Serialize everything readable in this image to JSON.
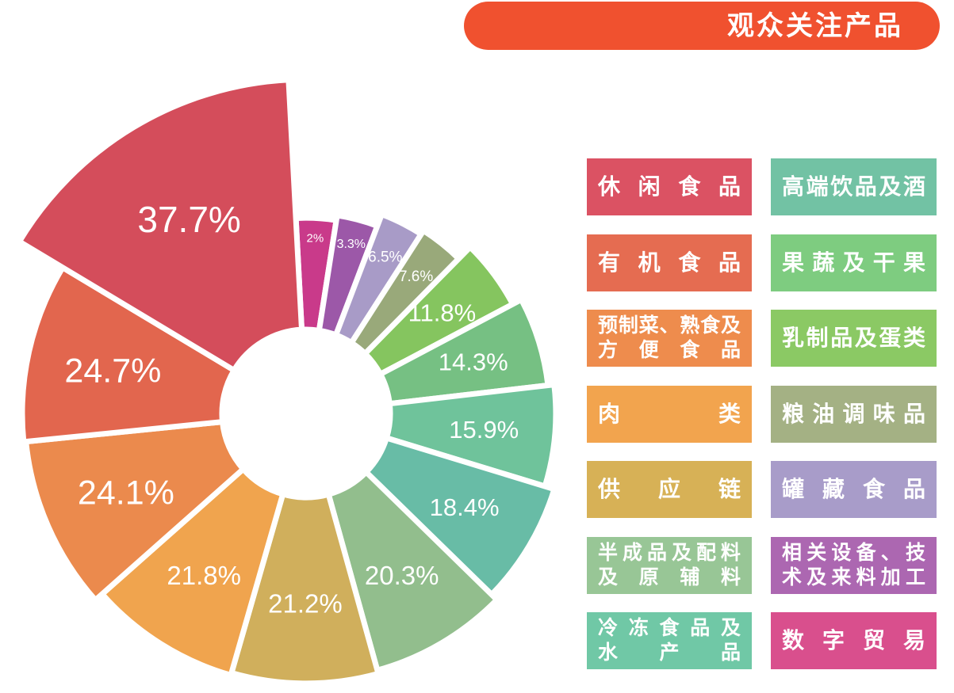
{
  "banner": {
    "title": "观众关注产品",
    "bg_color": "#F0512F",
    "text_color": "#FFFFFF"
  },
  "chart_data": {
    "type": "pie",
    "variant": "nightingale_rose",
    "title": "观众关注产品",
    "unit": "%",
    "order": "clockwise_from_top_ascending_value",
    "value_labels": "inside",
    "legend_position": "right",
    "slices": [
      {
        "label": "数字贸易",
        "value": 2,
        "display": "2%",
        "color": "#C93A8A"
      },
      {
        "label": "相关设备、技术及来料加工",
        "value": 3.3,
        "display": "3.3%",
        "color": "#9C58A8"
      },
      {
        "label": "罐藏食品",
        "value": 6.5,
        "display": "6.5%",
        "color": "#A89BC7"
      },
      {
        "label": "粮油调味品",
        "value": 7.6,
        "display": "7.6%",
        "color": "#99A97A"
      },
      {
        "label": "乳制品及蛋类",
        "value": 11.8,
        "display": "11.8%",
        "color": "#85C55F"
      },
      {
        "label": "果蔬及干果",
        "value": 14.3,
        "display": "14.3%",
        "color": "#76C083"
      },
      {
        "label": "高端饮品及酒",
        "value": 15.9,
        "display": "15.9%",
        "color": "#6FC39B"
      },
      {
        "label": "冷冻食品及水产品",
        "value": 18.4,
        "display": "18.4%",
        "color": "#68BCA6"
      },
      {
        "label": "半成品及配料及原辅料",
        "value": 20.3,
        "display": "20.3%",
        "color": "#92BE8D"
      },
      {
        "label": "供应链",
        "value": 21.2,
        "display": "21.2%",
        "color": "#D0AF5C"
      },
      {
        "label": "肉类",
        "value": 21.8,
        "display": "21.8%",
        "color": "#F0A44E"
      },
      {
        "label": "预制菜、熟食及方便食品",
        "value": 24.1,
        "display": "24.1%",
        "color": "#EB8A4D"
      },
      {
        "label": "有机食品",
        "value": 24.7,
        "display": "24.7%",
        "color": "#E2664E"
      },
      {
        "label": "休闲食品",
        "value": 37.7,
        "display": "37.7%",
        "color": "#D44D5B"
      }
    ]
  },
  "legend": {
    "items": [
      {
        "lines": [
          "休闲食品"
        ],
        "color": "#DB5263"
      },
      {
        "lines": [
          "高端饮品及酒"
        ],
        "color": "#72C2A4"
      },
      {
        "lines": [
          "有机食品"
        ],
        "color": "#E56C51"
      },
      {
        "lines": [
          "果蔬及干果"
        ],
        "color": "#7ECC80"
      },
      {
        "lines": [
          "预制菜、熟食及",
          "方便食品"
        ],
        "color": "#EE8C4D"
      },
      {
        "lines": [
          "乳制品及蛋类"
        ],
        "color": "#8BC964"
      },
      {
        "lines": [
          "肉类"
        ],
        "color": "#F2A44E"
      },
      {
        "lines": [
          "粮油调味品"
        ],
        "color": "#A4B184"
      },
      {
        "lines": [
          "供应链"
        ],
        "color": "#D7B156"
      },
      {
        "lines": [
          "罐藏食品"
        ],
        "color": "#A89CC9"
      },
      {
        "lines": [
          "半成品及配料",
          "及原辅料"
        ],
        "color": "#98C696"
      },
      {
        "lines": [
          "相关设备、技",
          "术及来料加工"
        ],
        "color": "#AC67B1"
      },
      {
        "lines": [
          "冷冻食品及",
          "水产品"
        ],
        "color": "#70C8A6"
      },
      {
        "lines": [
          "数字贸易"
        ],
        "color": "#D94F8D"
      }
    ]
  }
}
